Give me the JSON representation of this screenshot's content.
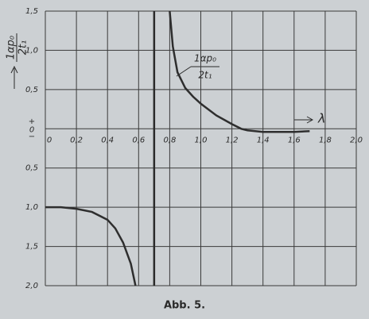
{
  "chart_data": {
    "type": "line",
    "y_label_numerator": "1αp₀",
    "y_label_denominator": "2t₁",
    "curve_label_numerator": "1αp₀",
    "curve_label_denominator": "2t₁",
    "x_label": "λ",
    "zero_signs": [
      "+",
      "−"
    ],
    "caption": "Abb. 5.",
    "xlim": [
      0,
      2.0
    ],
    "ylim": [
      -2.0,
      1.5
    ],
    "xticks": [
      {
        "value": 0,
        "label": "0"
      },
      {
        "value": 0.2,
        "label": "0,2"
      },
      {
        "value": 0.4,
        "label": "0,4"
      },
      {
        "value": 0.6,
        "label": "0,6"
      },
      {
        "value": 0.8,
        "label": "0,8"
      },
      {
        "value": 1.0,
        "label": "1,0"
      },
      {
        "value": 1.2,
        "label": "1,2"
      },
      {
        "value": 1.4,
        "label": "1,4"
      },
      {
        "value": 1.6,
        "label": "1,6"
      },
      {
        "value": 1.8,
        "label": "1,8"
      },
      {
        "value": 2.0,
        "label": "2,0"
      }
    ],
    "yticks": [
      {
        "value": 1.5,
        "label": "1,5"
      },
      {
        "value": 1.0,
        "label": "1,0"
      },
      {
        "value": 0.5,
        "label": "0,5"
      },
      {
        "value": 0,
        "label": "0"
      },
      {
        "value": -0.5,
        "label": "0,5"
      },
      {
        "value": -1.0,
        "label": "1,0"
      },
      {
        "value": -1.5,
        "label": "1,5"
      },
      {
        "value": -2.0,
        "label": "2,0"
      }
    ],
    "grid": true,
    "asymptote_x": 0.7,
    "series": [
      {
        "color": "#2e2e2e",
        "x": [
          0.8,
          0.82,
          0.85,
          0.9,
          0.95,
          1.0,
          1.1,
          1.2,
          1.26,
          1.3,
          1.4,
          1.5,
          1.6,
          1.7
        ],
        "values": [
          1.5,
          1.05,
          0.72,
          0.52,
          0.41,
          0.32,
          0.17,
          0.06,
          0,
          -0.02,
          -0.04,
          -0.04,
          -0.04,
          -0.03
        ]
      },
      {
        "color": "#2e2e2e",
        "x": [
          0,
          0.1,
          0.2,
          0.3,
          0.4,
          0.45,
          0.5,
          0.55,
          0.58
        ],
        "values": [
          -1.0,
          -1.0,
          -1.02,
          -1.06,
          -1.16,
          -1.27,
          -1.45,
          -1.72,
          -2.0
        ]
      }
    ]
  }
}
